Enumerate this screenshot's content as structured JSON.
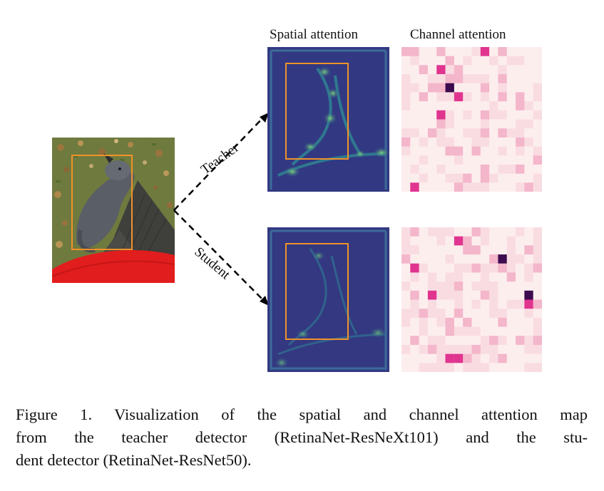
{
  "figure": {
    "column_titles": {
      "spatial": "Spatial attention",
      "channel": "Channel attention"
    },
    "branch_labels": {
      "teacher": "Teacher",
      "student": "Student"
    },
    "caption": {
      "line1": "Figure 1.  Visualization of the spatial and channel attention map",
      "line2": "from the teacher detector (RetinaNet-ResNeXt101) and the stu-",
      "line3": "dent detector (RetinaNet-ResNet50)."
    },
    "colors": {
      "bbox": "#f0922a",
      "spatial_background": "#2d4a8a",
      "spatial_highlight": "#5fd27a",
      "channel_low": "#fdeeee",
      "channel_mid": "#f3b6ca",
      "channel_high": "#e0348f",
      "channel_peak": "#3c0a4e",
      "photo_grass": "#6f7a3e",
      "photo_sweater": "#e21d1d",
      "photo_pants": "#3f3f3c",
      "photo_dog": "#5a5e66"
    }
  }
}
